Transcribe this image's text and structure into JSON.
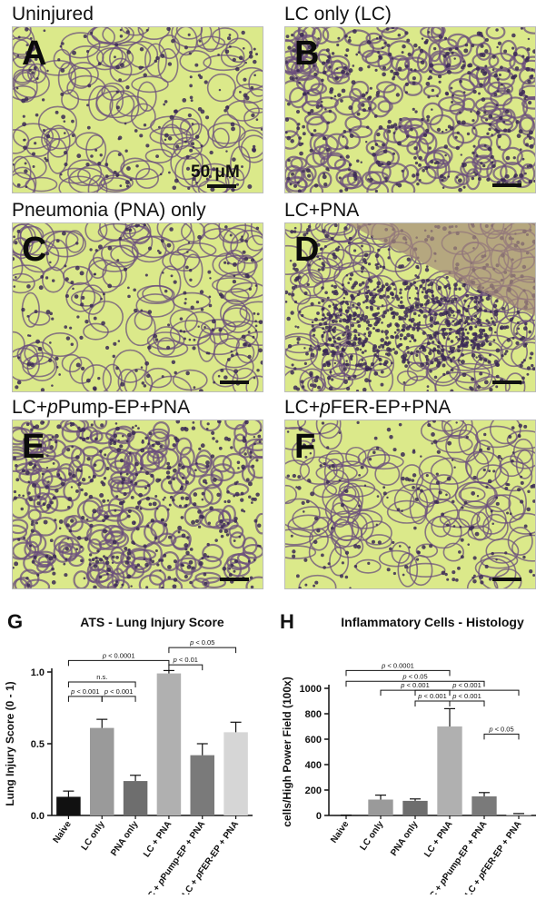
{
  "panels": [
    {
      "letter": "A",
      "title": "Uninjured",
      "variant": "normal",
      "scale_text": "50 μM"
    },
    {
      "letter": "B",
      "title": "LC only (LC)",
      "variant": "dense"
    },
    {
      "letter": "C",
      "title": "Pneumonia (PNA) only",
      "variant": "normal"
    },
    {
      "letter": "D",
      "title": "LC+PNA",
      "variant": "inflamed"
    },
    {
      "letter": "E",
      "title_pre": "LC+",
      "title_italic": "p",
      "title_post": "Pump-EP+PNA",
      "variant": "dense"
    },
    {
      "letter": "F",
      "title_pre": "LC+",
      "title_italic": "p",
      "title_post": "FER-EP+PNA",
      "variant": "normal"
    }
  ],
  "colors": {
    "tissue_bg": "#dbe98a",
    "septa": "#6b4f7c",
    "nuclei": "#3b2a55"
  },
  "chart_data": [
    {
      "type": "bar",
      "letter": "G",
      "title": "ATS - Lung Injury Score",
      "ylabel": "Lung Injury Score (0 - 1)",
      "ylim": [
        0,
        1
      ],
      "yticks": [
        "0.0",
        "0.5",
        "1.0"
      ],
      "categories": [
        "Naive",
        "LC only",
        "PNA only",
        "LC + PNA",
        "LC + pPump-EP + PNA",
        "LC + pFER-EP + PNA"
      ],
      "values": [
        0.13,
        0.61,
        0.24,
        0.99,
        0.42,
        0.58
      ],
      "errors": [
        0.04,
        0.06,
        0.04,
        0.02,
        0.08,
        0.07
      ],
      "colors": [
        "#111111",
        "#9a9a9a",
        "#6e6e6e",
        "#b0b0b0",
        "#7a7a7a",
        "#d6d6d6"
      ],
      "annotations": [
        {
          "text": "p < 0.0001",
          "from": 0,
          "to": 3,
          "level": 1.08
        },
        {
          "text": "n.s.",
          "from": 0,
          "to": 2,
          "level": 0.93
        },
        {
          "text": "p < 0.001",
          "from": 0,
          "to": 1,
          "level": 0.83
        },
        {
          "text": "p < 0.001",
          "from": 1,
          "to": 2,
          "level": 0.83
        },
        {
          "text": "p < 0.05",
          "from": 3,
          "to": 5,
          "level": 1.17
        },
        {
          "text": "p < 0.01",
          "from": 3,
          "to": 4,
          "level": 1.05
        }
      ]
    },
    {
      "type": "bar",
      "letter": "H",
      "title": "Inflammatory Cells - Histology",
      "ylabel": "cells/High Power Field (100x)",
      "ylim": [
        0,
        1000
      ],
      "yticks": [
        "0",
        "200",
        "400",
        "600",
        "800",
        "1000"
      ],
      "categories": [
        "Naive",
        "LC only",
        "PNA only",
        "LC + PNA",
        "LC + pPump-EP + PNA",
        "LC + pFER-EP + PNA"
      ],
      "values": [
        2,
        125,
        115,
        700,
        150,
        10
      ],
      "errors": [
        1,
        35,
        15,
        140,
        30,
        5
      ],
      "colors": [
        "#111111",
        "#9a9a9a",
        "#6e6e6e",
        "#b0b0b0",
        "#7a7a7a",
        "#d6d6d6"
      ],
      "annotations": [
        {
          "text": "p < 0.0001",
          "from": 0,
          "to": 3,
          "level": 1140
        },
        {
          "text": "p < 0.05",
          "from": 0,
          "to": 4,
          "level": 1055
        },
        {
          "text": "p < 0.001",
          "from": 2,
          "to": 5,
          "level": 985
        },
        {
          "text": "p < 0.001",
          "from": 1,
          "to": 3,
          "level": 985
        },
        {
          "text": "p < 0.001",
          "from": 2,
          "to": 3,
          "level": 900
        },
        {
          "text": "p < 0.001",
          "from": 3,
          "to": 4,
          "level": 900
        },
        {
          "text": "p < 0.05",
          "from": 4,
          "to": 5,
          "level": 640
        }
      ]
    }
  ]
}
